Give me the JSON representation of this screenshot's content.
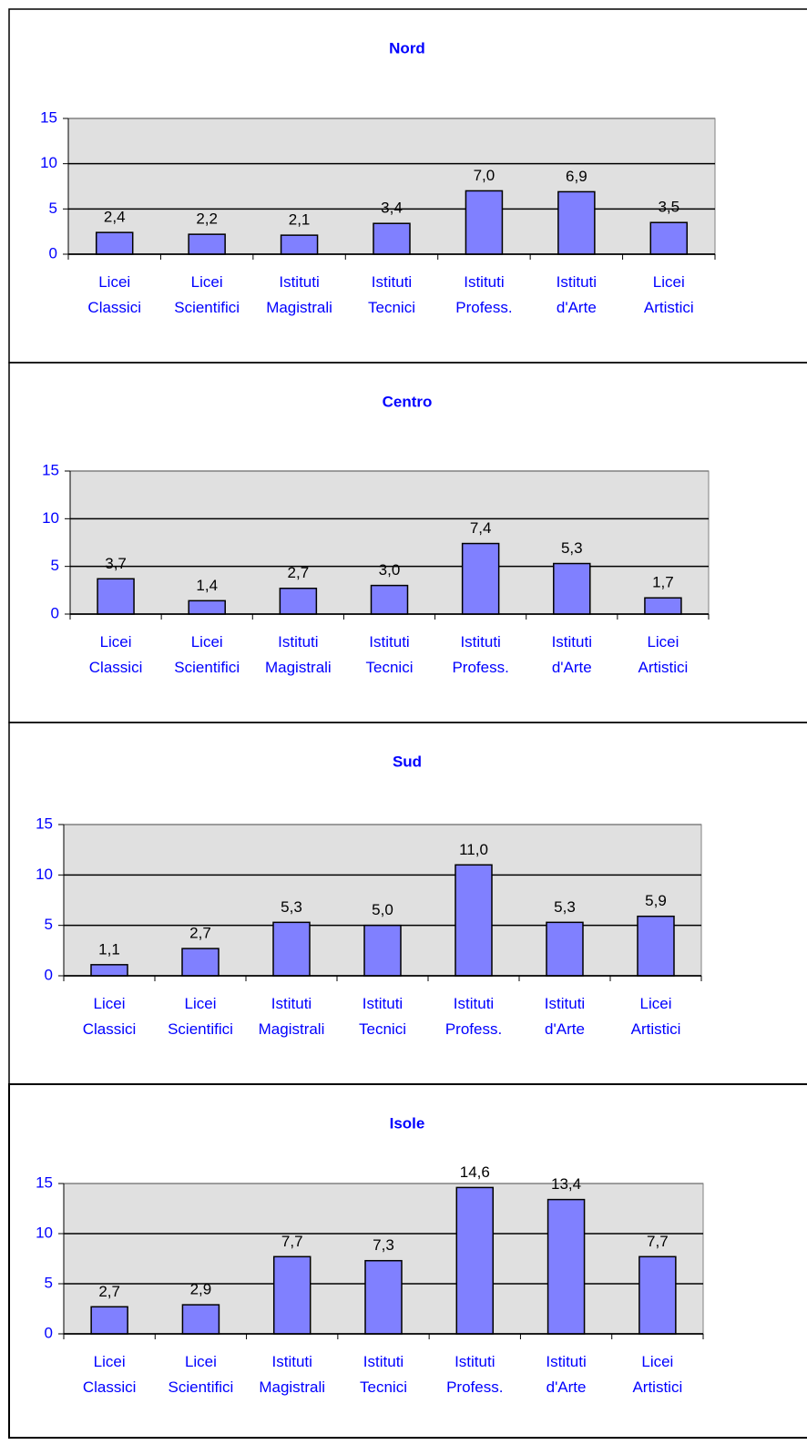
{
  "chart_data": [
    {
      "type": "bar",
      "title": "Nord",
      "categories": [
        "Licei\nClassici",
        "Licei\nScientifici",
        "Istituti\nMagistrali",
        "Istituti\nTecnici",
        "Istituti\nProfess.",
        "Istituti\nd'Arte",
        "Licei\nArtistici"
      ],
      "values": [
        2.4,
        2.2,
        2.1,
        3.4,
        7.0,
        6.9,
        3.5
      ],
      "value_labels": [
        "2,4",
        "2,2",
        "2,1",
        "3,4",
        "7,0",
        "6,9",
        "3,5"
      ],
      "color": "#8080ff",
      "ylim": [
        0,
        15
      ],
      "yticks": [
        0,
        5,
        10,
        15
      ],
      "grid": true
    },
    {
      "type": "bar",
      "title": "Centro",
      "categories": [
        "Licei\nClassici",
        "Licei\nScientifici",
        "Istituti\nMagistrali",
        "Istituti\nTecnici",
        "Istituti\nProfess.",
        "Istituti\nd'Arte",
        "Licei\nArtistici"
      ],
      "values": [
        3.7,
        1.4,
        2.7,
        3.0,
        7.4,
        5.3,
        1.7
      ],
      "value_labels": [
        "3,7",
        "1,4",
        "2,7",
        "3,0",
        "7,4",
        "5,3",
        "1,7"
      ],
      "color": "#8080ff",
      "ylim": [
        0,
        15
      ],
      "yticks": [
        0,
        5,
        10,
        15
      ],
      "grid": true
    },
    {
      "type": "bar",
      "title": "Sud",
      "categories": [
        "Licei\nClassici",
        "Licei\nScientifici",
        "Istituti\nMagistrali",
        "Istituti\nTecnici",
        "Istituti\nProfess.",
        "Istituti\nd'Arte",
        "Licei\nArtistici"
      ],
      "values": [
        1.1,
        2.7,
        5.3,
        5.0,
        11.0,
        5.3,
        5.9
      ],
      "value_labels": [
        "1,1",
        "2,7",
        "5,3",
        "5,0",
        "11,0",
        "5,3",
        "5,9"
      ],
      "color": "#8080ff",
      "ylim": [
        0,
        15
      ],
      "yticks": [
        0,
        5,
        10,
        15
      ],
      "grid": true
    },
    {
      "type": "bar",
      "title": "Isole",
      "categories": [
        "Licei\nClassici",
        "Licei\nScientifici",
        "Istituti\nMagistrali",
        "Istituti\nTecnici",
        "Istituti\nProfess.",
        "Istituti\nd'Arte",
        "Licei\nArtistici"
      ],
      "values": [
        2.7,
        2.9,
        7.7,
        7.3,
        14.6,
        13.4,
        7.7
      ],
      "value_labels": [
        "2,7",
        "2,9",
        "7,7",
        "7,3",
        "14,6",
        "13,4",
        "7,7"
      ],
      "color": "#8080ff",
      "ylim": [
        0,
        15
      ],
      "yticks": [
        0,
        5,
        10,
        15
      ],
      "grid": true
    }
  ]
}
